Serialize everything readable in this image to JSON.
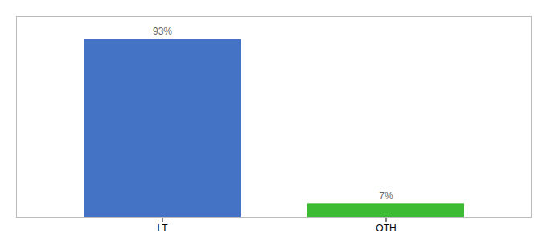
{
  "chart_data": {
    "type": "bar",
    "categories": [
      "LT",
      "OTH"
    ],
    "values": [
      93,
      7
    ],
    "value_labels": [
      "93%",
      "7%"
    ],
    "colors": [
      "#4472c4",
      "#3dbb35"
    ],
    "ylim": [
      0,
      105
    ],
    "data_labels": true,
    "tick_labels": "x",
    "grid": false
  }
}
